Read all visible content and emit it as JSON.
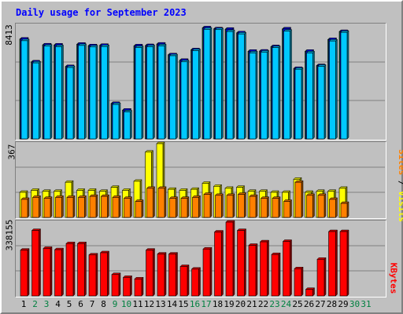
{
  "title": "Daily usage for September 2023",
  "colors": {
    "background": "#c0c0c0",
    "title": "#0000ff",
    "pages": "#00c8ff",
    "files": "#0000ff",
    "hits": "#008040",
    "visits": "#ffff00",
    "sites": "#ff8000",
    "kbytes": "#ff0000",
    "weekday_label": "#000000",
    "weekend_label": "#008040"
  },
  "panels": {
    "top": {
      "ymax_label": "8413",
      "legend": [
        {
          "text": "Pages",
          "color": "#00c8ff"
        },
        {
          "text": " / ",
          "color": "#000000"
        },
        {
          "text": "Files",
          "color": "#0000ff"
        },
        {
          "text": " / ",
          "color": "#000000"
        },
        {
          "text": "Hits",
          "color": "#008040"
        }
      ]
    },
    "mid": {
      "ymax_label": "367",
      "legend": [
        {
          "text": "Sites",
          "color": "#ff8000"
        },
        {
          "text": " / ",
          "color": "#000000"
        },
        {
          "text": "Visits",
          "color": "#ffff00"
        }
      ]
    },
    "bot": {
      "ymax_label": "338155",
      "legend": [
        {
          "text": "KBytes",
          "color": "#ff0000"
        }
      ]
    }
  },
  "chart_data": {
    "type": "bar",
    "title": "Daily usage for September 2023",
    "x": [
      "1",
      "2",
      "3",
      "4",
      "5",
      "6",
      "7",
      "8",
      "9",
      "10",
      "11",
      "12",
      "13",
      "14",
      "15",
      "16",
      "17",
      "18",
      "19",
      "20",
      "21",
      "22",
      "23",
      "24",
      "25",
      "26",
      "27",
      "28",
      "29",
      "30",
      "31"
    ],
    "weekend_days": [
      "2",
      "3",
      "9",
      "10",
      "16",
      "17",
      "23",
      "24",
      "30",
      "31"
    ],
    "panels": [
      {
        "ymax": 8413,
        "series": [
          {
            "name": "Hits",
            "values": [
              7380,
              5690,
              6950,
              6940,
              5350,
              7000,
              6890,
              6920,
              2620,
              2130,
              6880,
              6900,
              7010,
              6220,
              5810,
              6590,
              8210,
              8140,
              8110,
              7840,
              6480,
              6490,
              6820,
              8130,
              5210,
              6480,
              5420,
              7350,
              7940,
              null,
              null
            ]
          },
          {
            "name": "Files",
            "values": [
              7380,
              5690,
              6950,
              6940,
              5350,
              7000,
              6890,
              6920,
              2620,
              2130,
              6880,
              6900,
              7010,
              6220,
              5810,
              6590,
              8210,
              8140,
              8110,
              7840,
              6480,
              6490,
              6820,
              8130,
              5210,
              6480,
              5420,
              7350,
              7940,
              null,
              null
            ]
          },
          {
            "name": "Pages",
            "values": [
              7260,
              5620,
              6860,
              6820,
              5280,
              6910,
              6800,
              6830,
              2550,
              2000,
              6760,
              6820,
              6880,
              6150,
              5700,
              6530,
              8100,
              8080,
              7940,
              7760,
              6360,
              6420,
              6750,
              7970,
              5150,
              6360,
              5370,
              7240,
              7880,
              null,
              null
            ]
          }
        ]
      },
      {
        "ymax": 367,
        "series": [
          {
            "name": "Visits",
            "values": [
              125,
              135,
              130,
              130,
              175,
              135,
              135,
              130,
              150,
              135,
              180,
              325,
              367,
              140,
              135,
              140,
              170,
              155,
              145,
              150,
              130,
              130,
              125,
              125,
              190,
              125,
              130,
              130,
              145,
              null,
              null
            ]
          },
          {
            "name": "Sites",
            "values": [
              90,
              100,
              95,
              100,
              100,
              100,
              105,
              105,
              100,
              95,
              80,
              145,
              145,
              95,
              95,
              100,
              115,
              110,
              110,
              115,
              105,
              95,
              95,
              80,
              175,
              110,
              110,
              90,
              70,
              null,
              null
            ]
          }
        ]
      },
      {
        "ymax": 338155,
        "series": [
          {
            "name": "KBytes",
            "values": [
              210000,
              300000,
              218000,
              212000,
              240000,
              240000,
              188000,
              198000,
              98000,
              85000,
              78000,
              210000,
              192000,
              192000,
              135000,
              123000,
              215000,
              293000,
              338155,
              300000,
              232000,
              248000,
              190000,
              250000,
              125000,
              30000,
              168000,
              295000,
              295000,
              null,
              null
            ]
          }
        ]
      }
    ]
  }
}
